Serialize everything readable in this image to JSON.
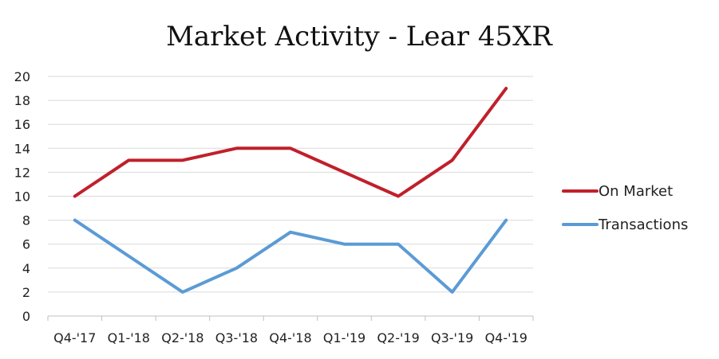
{
  "chart_data": {
    "type": "line",
    "title": "Market Activity - Lear 45XR",
    "xlabel": "",
    "ylabel": "",
    "categories": [
      "Q4-'17",
      "Q1-'18",
      "Q2-'18",
      "Q3-'18",
      "Q4-'18",
      "Q1-'19",
      "Q2-'19",
      "Q3-'19",
      "Q4-'19"
    ],
    "ylim": [
      0,
      20
    ],
    "yticks": [
      0,
      2,
      4,
      6,
      8,
      10,
      12,
      14,
      16,
      18,
      20
    ],
    "grid": true,
    "legend_position": "right",
    "series": [
      {
        "name": "On Market",
        "color": "#c0202b",
        "values": [
          10,
          13,
          13,
          14,
          14,
          12,
          10,
          13,
          19
        ]
      },
      {
        "name": "Transactions",
        "color": "#5b9bd5",
        "values": [
          8,
          5,
          2,
          4,
          7,
          6,
          6,
          2,
          8
        ]
      }
    ]
  }
}
